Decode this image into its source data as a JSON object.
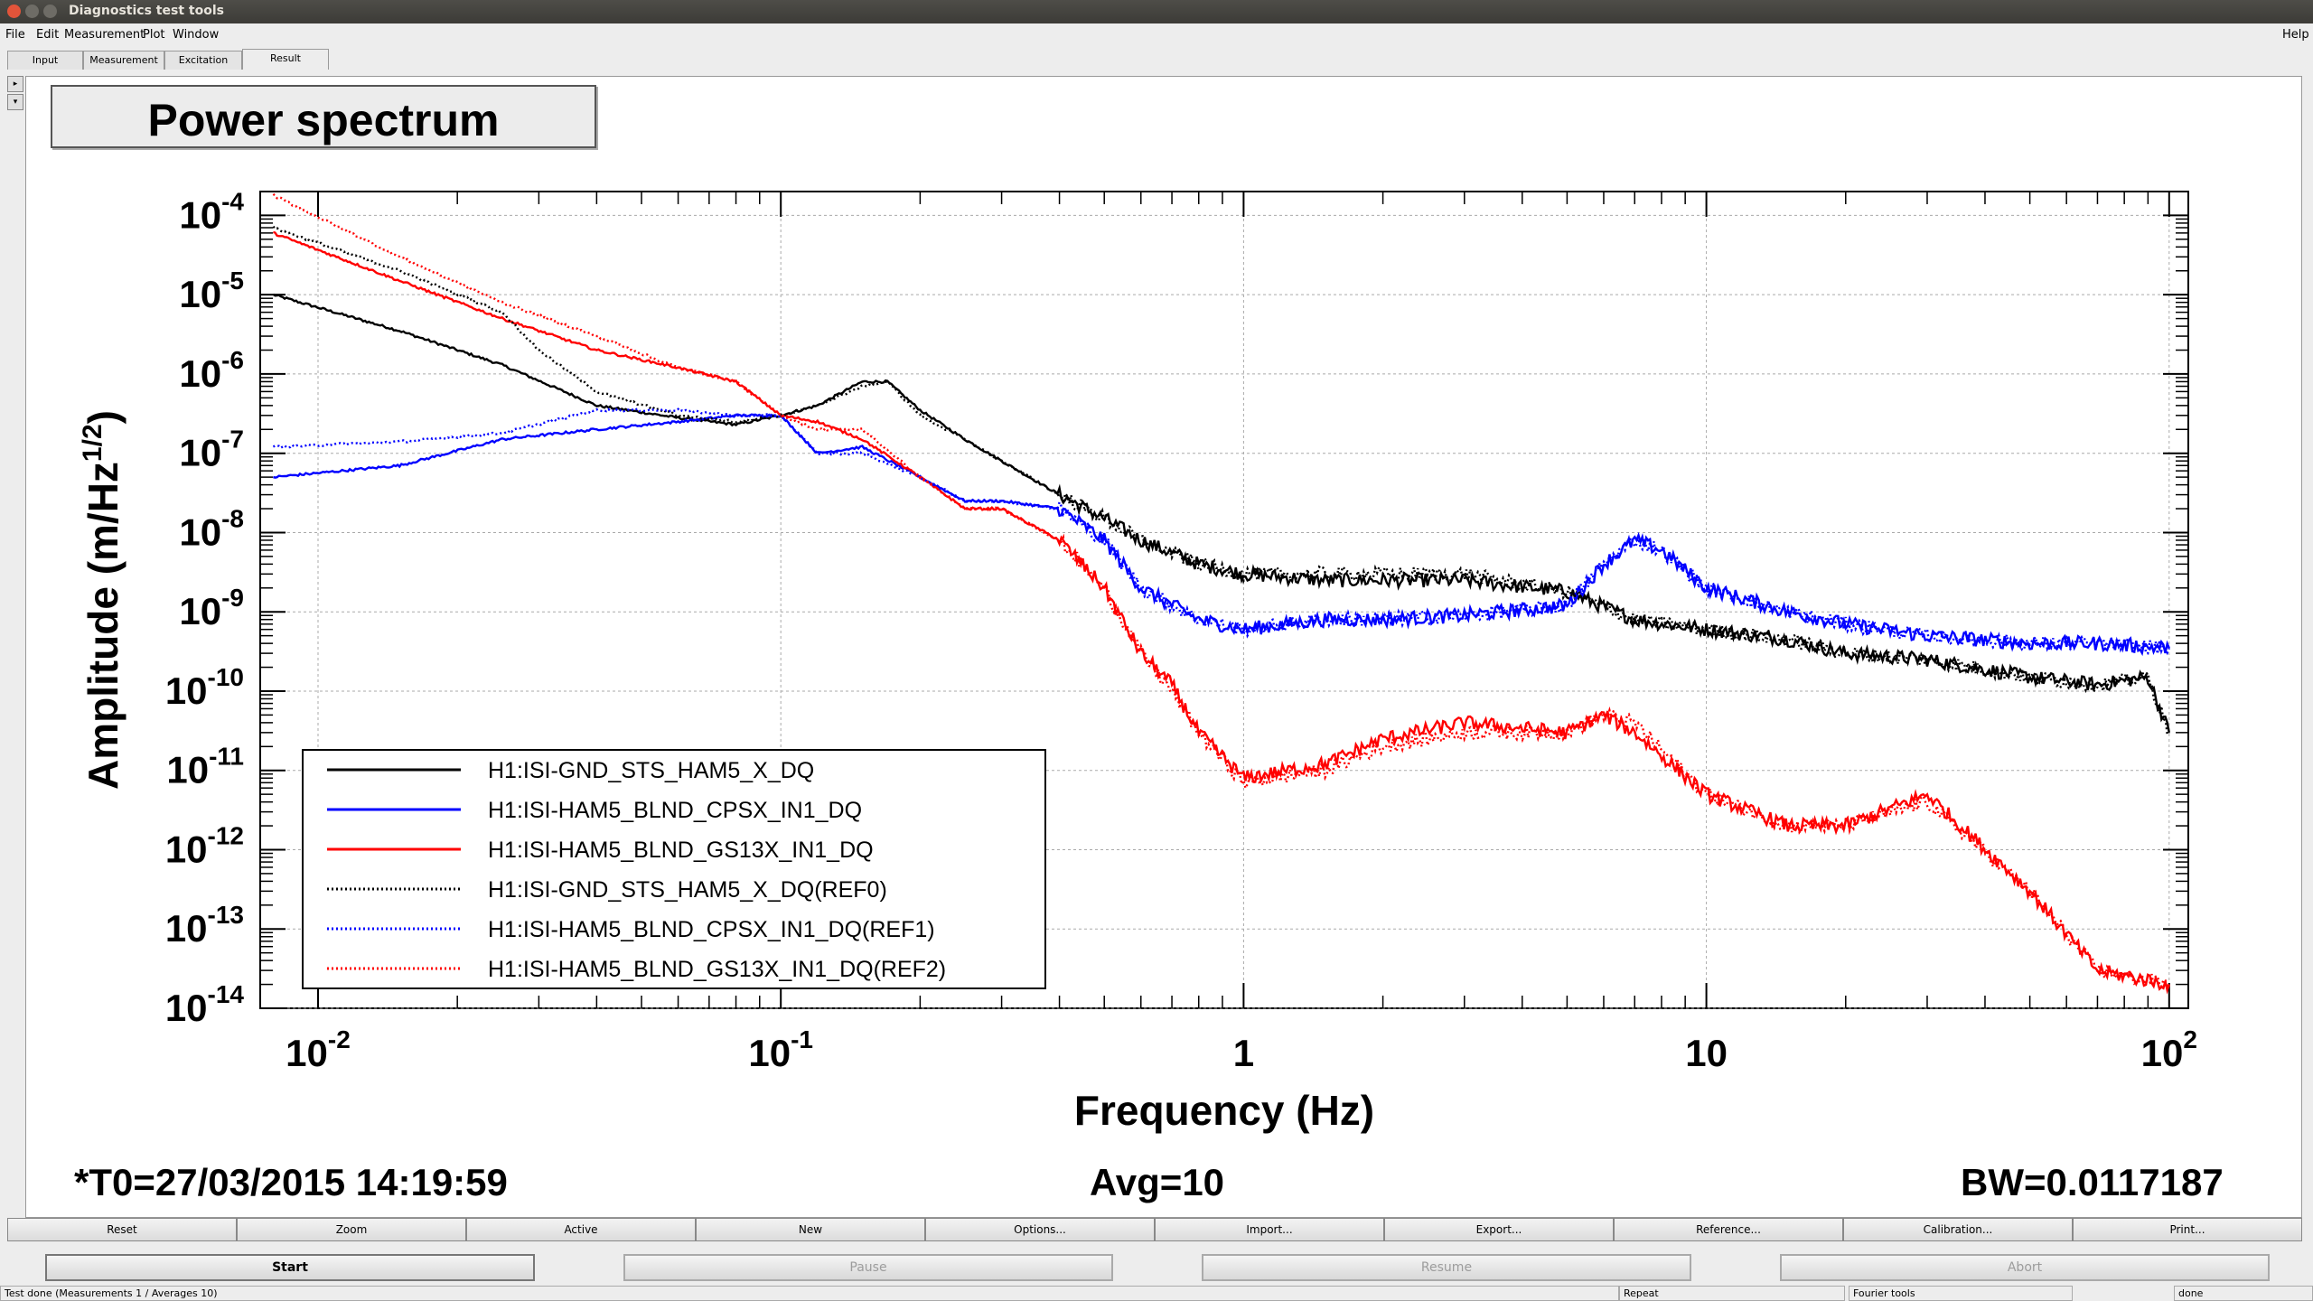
{
  "window": {
    "title": "Diagnostics test tools",
    "help": "Help"
  },
  "menu": [
    "File",
    "Edit",
    "Measurement",
    "Plot",
    "Window"
  ],
  "tabs": [
    "Input",
    "Measurement",
    "Excitation",
    "Result"
  ],
  "active_tab": "Result",
  "plot": {
    "title": "Power spectrum",
    "t0": "*T0=27/03/2015 14:19:59",
    "avg": "Avg=10",
    "bw": "BW=0.0117187"
  },
  "chart_data": {
    "type": "line",
    "title": "Power spectrum",
    "xlabel": "Frequency (Hz)",
    "ylabel": "Amplitude (m/Hz^1/2)",
    "xscale": "log",
    "yscale": "log",
    "xlim": [
      0.0075,
      110
    ],
    "ylim": [
      1e-14,
      0.0002
    ],
    "xticks": [
      "10^-2",
      "10^-1",
      "1",
      "10",
      "10^2"
    ],
    "yticks": [
      "10^-4",
      "10^-5",
      "10^-6",
      "10^-7",
      "10^-8",
      "10^-9",
      "10^-10",
      "10^-11",
      "10^-12",
      "10^-13",
      "10^-14"
    ],
    "grid": true,
    "legend_position": "bottom-left",
    "series": [
      {
        "name": "H1:ISI-GND_STS_HAM5_X_DQ",
        "color": "#000000",
        "style": "solid",
        "x": [
          0.008,
          0.015,
          0.025,
          0.04,
          0.06,
          0.08,
          0.1,
          0.12,
          0.15,
          0.17,
          0.2,
          0.25,
          0.3,
          0.4,
          0.5,
          0.6,
          0.8,
          1,
          1.5,
          2,
          3,
          5,
          7,
          10,
          15,
          20,
          30,
          50,
          70,
          90,
          100
        ],
        "y": [
          1e-05,
          3.5e-06,
          1.3e-06,
          4e-07,
          2.8e-07,
          2.3e-07,
          3e-07,
          4e-07,
          8e-07,
          8e-07,
          3.5e-07,
          1.5e-07,
          8e-08,
          3e-08,
          1.5e-08,
          8e-09,
          4e-09,
          3e-09,
          2.5e-09,
          2.5e-09,
          2.5e-09,
          1.8e-09,
          8e-10,
          6e-10,
          4.5e-10,
          3e-10,
          2.5e-10,
          1.5e-10,
          1.2e-10,
          1.5e-10,
          3e-11
        ]
      },
      {
        "name": "H1:ISI-HAM5_BLND_CPSX_IN1_DQ",
        "color": "#0000ff",
        "style": "solid",
        "x": [
          0.008,
          0.015,
          0.025,
          0.04,
          0.06,
          0.08,
          0.1,
          0.12,
          0.15,
          0.2,
          0.25,
          0.3,
          0.4,
          0.5,
          0.6,
          0.8,
          1,
          1.5,
          2,
          3,
          5,
          6,
          7,
          8,
          10,
          15,
          20,
          30,
          50,
          70,
          100
        ],
        "y": [
          5e-08,
          7e-08,
          1.5e-07,
          2e-07,
          2.5e-07,
          3e-07,
          3e-07,
          1e-07,
          1.2e-07,
          5e-08,
          2.5e-08,
          2.5e-08,
          2e-08,
          8e-09,
          2e-09,
          8e-10,
          6e-10,
          8e-10,
          8e-10,
          9e-10,
          1.2e-09,
          4e-09,
          8e-09,
          6e-09,
          2e-09,
          1e-09,
          7e-10,
          5e-10,
          4e-10,
          4e-10,
          3.5e-10
        ]
      },
      {
        "name": "H1:ISI-HAM5_BLND_GS13X_IN1_DQ",
        "color": "#ff0000",
        "style": "solid",
        "x": [
          0.008,
          0.015,
          0.025,
          0.04,
          0.06,
          0.08,
          0.1,
          0.12,
          0.15,
          0.2,
          0.25,
          0.3,
          0.4,
          0.5,
          0.6,
          0.7,
          0.8,
          1,
          1.5,
          2,
          3,
          5,
          6,
          7,
          10,
          15,
          20,
          30,
          50,
          70,
          100
        ],
        "y": [
          6e-05,
          1.5e-05,
          5e-06,
          2e-06,
          1.2e-06,
          8e-07,
          3e-07,
          2.5e-07,
          1.5e-07,
          5e-08,
          2e-08,
          2e-08,
          8e-09,
          2e-09,
          3e-10,
          1.2e-10,
          3e-11,
          8e-12,
          1.2e-11,
          2.5e-11,
          4e-11,
          3e-11,
          5e-11,
          3e-11,
          5e-12,
          2e-12,
          2e-12,
          5e-12,
          3e-13,
          3e-14,
          2e-14
        ]
      },
      {
        "name": "H1:ISI-GND_STS_HAM5_X_DQ(REF0)",
        "color": "#000000",
        "style": "dotted",
        "x": [
          0.008,
          0.015,
          0.025,
          0.03,
          0.04,
          0.06,
          0.08,
          0.1,
          0.12,
          0.15,
          0.17,
          0.2,
          0.25,
          0.3,
          0.4,
          0.5,
          0.6,
          0.8,
          1,
          1.5,
          2,
          3,
          5,
          7,
          10,
          15,
          20,
          30,
          50,
          70,
          90,
          100
        ],
        "y": [
          7e-05,
          2e-05,
          6e-06,
          2e-06,
          6e-07,
          3e-07,
          2.5e-07,
          3e-07,
          4e-07,
          7e-07,
          8e-07,
          3e-07,
          1.5e-07,
          8e-08,
          3e-08,
          1.5e-08,
          8e-09,
          4e-09,
          3e-09,
          3e-09,
          3e-09,
          3e-09,
          1.8e-09,
          8e-10,
          6e-10,
          4.5e-10,
          3e-10,
          2.5e-10,
          1.5e-10,
          1.2e-10,
          1.5e-10,
          3e-11
        ]
      },
      {
        "name": "H1:ISI-HAM5_BLND_CPSX_IN1_DQ(REF1)",
        "color": "#0000ff",
        "style": "dotted",
        "x": [
          0.008,
          0.015,
          0.025,
          0.04,
          0.06,
          0.08,
          0.1,
          0.12,
          0.15,
          0.2,
          0.25,
          0.3,
          0.4,
          0.5,
          0.6,
          0.8,
          1,
          1.5,
          2,
          3,
          5,
          6,
          7,
          8,
          10,
          15,
          20,
          30,
          50,
          70,
          100
        ],
        "y": [
          1.2e-07,
          1.4e-07,
          1.8e-07,
          3.5e-07,
          3.5e-07,
          3e-07,
          3e-07,
          1e-07,
          1e-07,
          5e-08,
          2.5e-08,
          2.5e-08,
          2e-08,
          8e-09,
          2e-09,
          8e-10,
          6e-10,
          8e-10,
          8e-10,
          9e-10,
          1.2e-09,
          4e-09,
          8e-09,
          6e-09,
          2e-09,
          1e-09,
          7e-10,
          5e-10,
          4e-10,
          4e-10,
          3.5e-10
        ]
      },
      {
        "name": "H1:ISI-HAM5_BLND_GS13X_IN1_DQ(REF2)",
        "color": "#ff0000",
        "style": "dotted",
        "x": [
          0.008,
          0.015,
          0.025,
          0.04,
          0.06,
          0.08,
          0.1,
          0.12,
          0.15,
          0.2,
          0.25,
          0.3,
          0.4,
          0.5,
          0.6,
          0.7,
          0.8,
          1,
          1.5,
          2,
          3,
          5,
          6,
          7,
          10,
          15,
          20,
          30,
          50,
          70,
          100
        ],
        "y": [
          0.00018,
          3e-05,
          8e-06,
          3e-06,
          1.2e-06,
          8e-07,
          3e-07,
          2e-07,
          2e-07,
          5e-08,
          2e-08,
          2e-08,
          8e-09,
          2e-09,
          3e-10,
          1e-10,
          3e-11,
          7e-12,
          1e-11,
          2e-11,
          3e-11,
          3e-11,
          5e-11,
          4e-11,
          5e-12,
          2e-12,
          2e-12,
          4e-12,
          3e-13,
          3e-14,
          2e-14
        ]
      }
    ]
  },
  "toolbar_top": [
    "Reset",
    "Zoom",
    "Active",
    "New",
    "Options...",
    "Import...",
    "Export...",
    "Reference...",
    "Calibration...",
    "Print..."
  ],
  "toolbar_bottom": [
    {
      "label": "Start",
      "enabled": true
    },
    {
      "label": "Pause",
      "enabled": false
    },
    {
      "label": "Resume",
      "enabled": false
    },
    {
      "label": "Abort",
      "enabled": false
    }
  ],
  "status": {
    "message": "Test done (Measurements 1 / Averages 10)",
    "repeat": "Repeat",
    "tool": "Fourier tools",
    "state": "done"
  },
  "colors": {
    "titlebar": "#3c3b37",
    "close_btn": "#e2543a",
    "panel_bg": "#ededed",
    "plot_bg": "#ffffff"
  }
}
